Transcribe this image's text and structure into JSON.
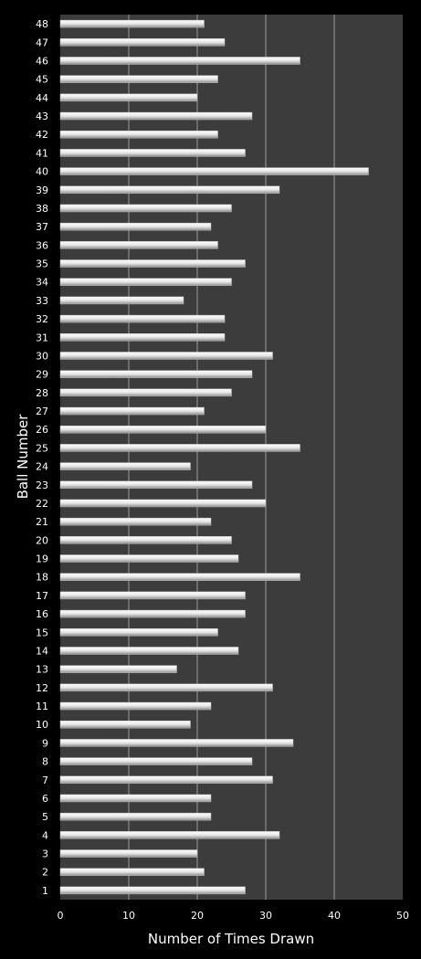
{
  "chart_data": {
    "type": "bar",
    "orientation": "horizontal",
    "title": "",
    "xlabel": "Number of Times Drawn",
    "ylabel": "Ball Number",
    "xlim": [
      0,
      50
    ],
    "x_ticks": [
      "0",
      "10",
      "20",
      "30",
      "40",
      "50"
    ],
    "grid": "vertical",
    "legend": "none",
    "categories": [
      "1",
      "2",
      "3",
      "4",
      "5",
      "6",
      "7",
      "8",
      "9",
      "10",
      "11",
      "12",
      "13",
      "14",
      "15",
      "16",
      "17",
      "18",
      "19",
      "20",
      "21",
      "22",
      "23",
      "24",
      "25",
      "26",
      "27",
      "28",
      "29",
      "30",
      "31",
      "32",
      "33",
      "34",
      "35",
      "36",
      "37",
      "38",
      "39",
      "40",
      "41",
      "42",
      "43",
      "44",
      "45",
      "46",
      "47",
      "48"
    ],
    "values": [
      27,
      21,
      20,
      32,
      22,
      22,
      31,
      28,
      34,
      19,
      22,
      31,
      17,
      26,
      23,
      27,
      27,
      35,
      26,
      25,
      22,
      30,
      28,
      19,
      35,
      30,
      21,
      25,
      28,
      31,
      24,
      24,
      18,
      25,
      27,
      23,
      22,
      25,
      32,
      45,
      27,
      23,
      28,
      20,
      23,
      35,
      24,
      21
    ],
    "colors": {
      "background": "#000000",
      "plot_area": "#3c3c3c",
      "bar": "#ffffff",
      "text": "#ffffff",
      "gridline": "#9a9a9a"
    }
  }
}
